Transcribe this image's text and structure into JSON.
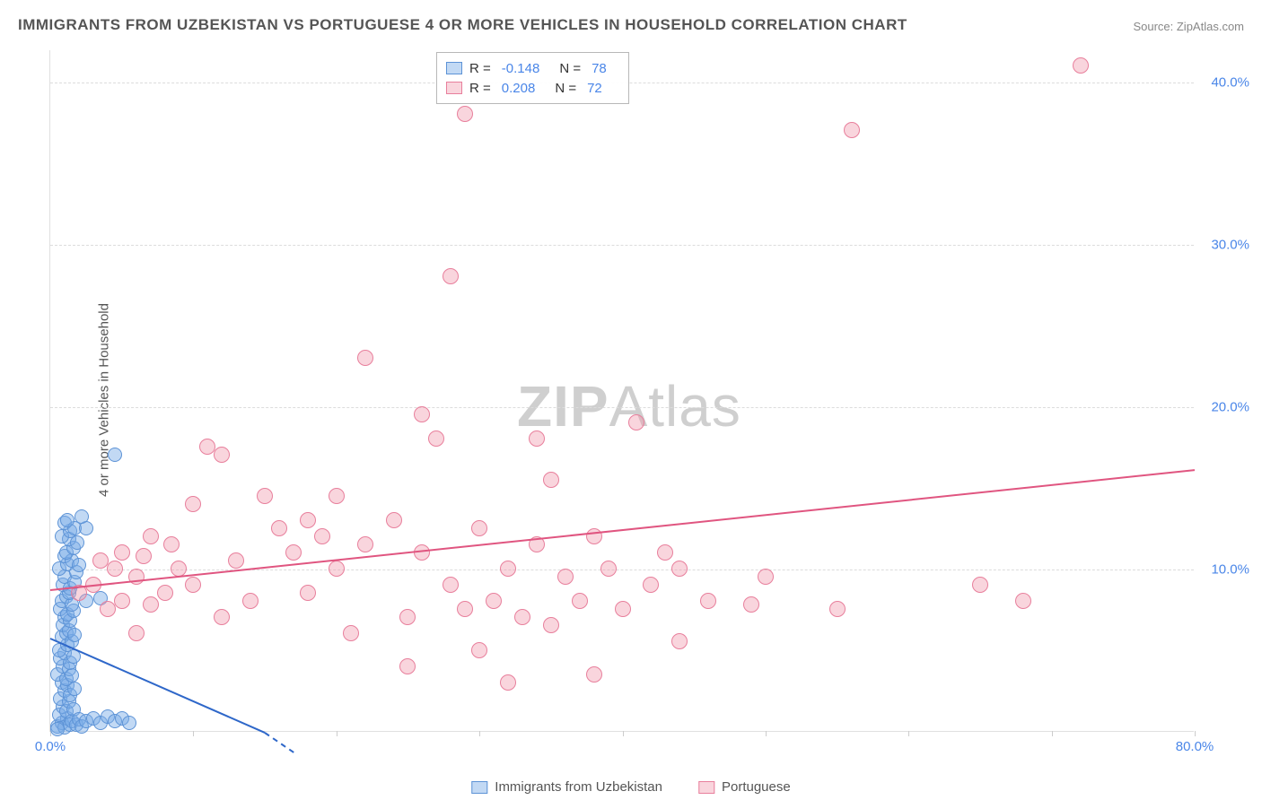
{
  "title": "IMMIGRANTS FROM UZBEKISTAN VS PORTUGUESE 4 OR MORE VEHICLES IN HOUSEHOLD CORRELATION CHART",
  "source": "Source: ZipAtlas.com",
  "watermark_zip": "ZIP",
  "watermark_atlas": "Atlas",
  "chart": {
    "type": "scatter",
    "ylabel": "4 or more Vehicles in Household",
    "xlim": [
      0,
      80
    ],
    "ylim": [
      0,
      42
    ],
    "background_color": "#ffffff",
    "grid_color": "#dcdcdc",
    "yticks": [
      10,
      20,
      30,
      40
    ],
    "ytick_labels": [
      "10.0%",
      "20.0%",
      "30.0%",
      "40.0%"
    ],
    "xtick_positions": [
      0,
      10,
      20,
      30,
      40,
      50,
      60,
      70,
      80
    ],
    "xtick_labels": {
      "0": "0.0%",
      "80": "80.0%"
    },
    "axis_label_color": "#4a86e8",
    "series": [
      {
        "name": "Immigrants from Uzbekistan",
        "color_fill": "rgba(120,170,230,0.45)",
        "color_stroke": "#5d93d6",
        "marker_radius": 8,
        "R": "-0.148",
        "N": "78",
        "trend": {
          "x1": 0,
          "y1": 5.8,
          "x2": 15,
          "y2": 0,
          "color": "#2e67c9",
          "dash_ext": true
        },
        "points": [
          [
            0.5,
            0.3
          ],
          [
            0.8,
            0.5
          ],
          [
            1.0,
            0.2
          ],
          [
            1.2,
            0.8
          ],
          [
            1.4,
            0.4
          ],
          [
            0.6,
            1.0
          ],
          [
            0.9,
            1.5
          ],
          [
            1.1,
            1.2
          ],
          [
            1.5,
            0.6
          ],
          [
            0.7,
            2.0
          ],
          [
            1.3,
            1.8
          ],
          [
            1.0,
            2.5
          ],
          [
            1.6,
            1.3
          ],
          [
            0.8,
            3.0
          ],
          [
            1.2,
            2.8
          ],
          [
            1.4,
            2.2
          ],
          [
            0.5,
            3.5
          ],
          [
            1.1,
            3.2
          ],
          [
            1.7,
            2.6
          ],
          [
            0.9,
            4.0
          ],
          [
            1.3,
            3.8
          ],
          [
            1.5,
            3.4
          ],
          [
            0.7,
            4.5
          ],
          [
            1.0,
            4.8
          ],
          [
            1.4,
            4.2
          ],
          [
            0.6,
            5.0
          ],
          [
            1.2,
            5.3
          ],
          [
            1.6,
            4.6
          ],
          [
            0.8,
            5.8
          ],
          [
            1.1,
            6.0
          ],
          [
            1.5,
            5.5
          ],
          [
            0.9,
            6.5
          ],
          [
            1.3,
            6.2
          ],
          [
            1.7,
            5.9
          ],
          [
            1.0,
            7.0
          ],
          [
            1.4,
            6.8
          ],
          [
            0.7,
            7.5
          ],
          [
            1.2,
            7.2
          ],
          [
            1.6,
            7.4
          ],
          [
            0.8,
            8.0
          ],
          [
            1.1,
            8.3
          ],
          [
            1.5,
            7.8
          ],
          [
            1.3,
            8.5
          ],
          [
            2.5,
            8.0
          ],
          [
            3.5,
            8.2
          ],
          [
            0.9,
            9.0
          ],
          [
            1.4,
            8.8
          ],
          [
            1.0,
            9.5
          ],
          [
            1.7,
            9.2
          ],
          [
            0.6,
            10.0
          ],
          [
            1.2,
            10.3
          ],
          [
            1.8,
            9.8
          ],
          [
            1.0,
            10.8
          ],
          [
            1.5,
            10.5
          ],
          [
            2.0,
            10.2
          ],
          [
            1.1,
            11.0
          ],
          [
            1.6,
            11.3
          ],
          [
            1.3,
            11.8
          ],
          [
            0.8,
            12.0
          ],
          [
            1.4,
            12.3
          ],
          [
            1.9,
            11.6
          ],
          [
            1.0,
            12.8
          ],
          [
            1.7,
            12.5
          ],
          [
            1.2,
            13.0
          ],
          [
            2.5,
            12.5
          ],
          [
            2.2,
            13.2
          ],
          [
            4.5,
            17.0
          ],
          [
            0.5,
            0.1
          ],
          [
            1.8,
            0.4
          ],
          [
            2.0,
            0.7
          ],
          [
            2.2,
            0.3
          ],
          [
            2.5,
            0.6
          ],
          [
            3.0,
            0.8
          ],
          [
            3.5,
            0.5
          ],
          [
            4.0,
            0.9
          ],
          [
            4.5,
            0.6
          ],
          [
            5.0,
            0.8
          ],
          [
            5.5,
            0.5
          ]
        ]
      },
      {
        "name": "Portuguese",
        "color_fill": "rgba(240,150,170,0.40)",
        "color_stroke": "#e87f9c",
        "marker_radius": 9,
        "R": "0.208",
        "N": "72",
        "trend": {
          "x1": 0,
          "y1": 8.8,
          "x2": 80,
          "y2": 16.2,
          "color": "#e05580",
          "dash_ext": false
        },
        "points": [
          [
            2,
            8.5
          ],
          [
            3,
            9.0
          ],
          [
            3.5,
            10.5
          ],
          [
            4,
            7.5
          ],
          [
            4.5,
            10.0
          ],
          [
            5,
            8.0
          ],
          [
            5,
            11.0
          ],
          [
            6,
            9.5
          ],
          [
            6,
            6.0
          ],
          [
            6.5,
            10.8
          ],
          [
            7,
            7.8
          ],
          [
            7,
            12.0
          ],
          [
            8,
            8.5
          ],
          [
            8.5,
            11.5
          ],
          [
            9,
            10.0
          ],
          [
            10,
            9.0
          ],
          [
            10,
            14.0
          ],
          [
            11,
            17.5
          ],
          [
            12,
            7.0
          ],
          [
            12,
            17.0
          ],
          [
            13,
            10.5
          ],
          [
            14,
            8.0
          ],
          [
            15,
            14.5
          ],
          [
            16,
            12.5
          ],
          [
            17,
            11.0
          ],
          [
            18,
            13.0
          ],
          [
            18,
            8.5
          ],
          [
            19,
            12.0
          ],
          [
            20,
            10.0
          ],
          [
            20,
            14.5
          ],
          [
            21,
            6.0
          ],
          [
            22,
            11.5
          ],
          [
            22,
            23.0
          ],
          [
            24,
            13.0
          ],
          [
            25,
            7.0
          ],
          [
            25,
            4.0
          ],
          [
            26,
            11.0
          ],
          [
            27,
            18.0
          ],
          [
            26,
            19.5
          ],
          [
            28,
            28.0
          ],
          [
            28,
            9.0
          ],
          [
            29,
            7.5
          ],
          [
            30,
            12.5
          ],
          [
            30,
            5.0
          ],
          [
            29,
            38.0
          ],
          [
            31,
            8.0
          ],
          [
            32,
            10.0
          ],
          [
            32,
            3.0
          ],
          [
            33,
            7.0
          ],
          [
            34,
            11.5
          ],
          [
            34,
            18.0
          ],
          [
            35,
            15.5
          ],
          [
            35,
            6.5
          ],
          [
            36,
            9.5
          ],
          [
            37,
            8.0
          ],
          [
            38,
            12.0
          ],
          [
            38,
            3.5
          ],
          [
            39,
            10.0
          ],
          [
            40,
            7.5
          ],
          [
            41,
            19.0
          ],
          [
            42,
            9.0
          ],
          [
            43,
            11.0
          ],
          [
            44,
            10.0
          ],
          [
            44,
            5.5
          ],
          [
            46,
            8.0
          ],
          [
            49,
            7.8
          ],
          [
            50,
            9.5
          ],
          [
            55,
            7.5
          ],
          [
            56,
            37.0
          ],
          [
            65,
            9.0
          ],
          [
            72,
            41.0
          ],
          [
            68,
            8.0
          ]
        ]
      }
    ]
  },
  "bottom_legend": [
    {
      "label": "Immigrants from Uzbekistan",
      "fill": "rgba(120,170,230,0.45)",
      "stroke": "#5d93d6"
    },
    {
      "label": "Portuguese",
      "fill": "rgba(240,150,170,0.40)",
      "stroke": "#e87f9c"
    }
  ],
  "legend_R_label": "R =",
  "legend_N_label": "N ="
}
